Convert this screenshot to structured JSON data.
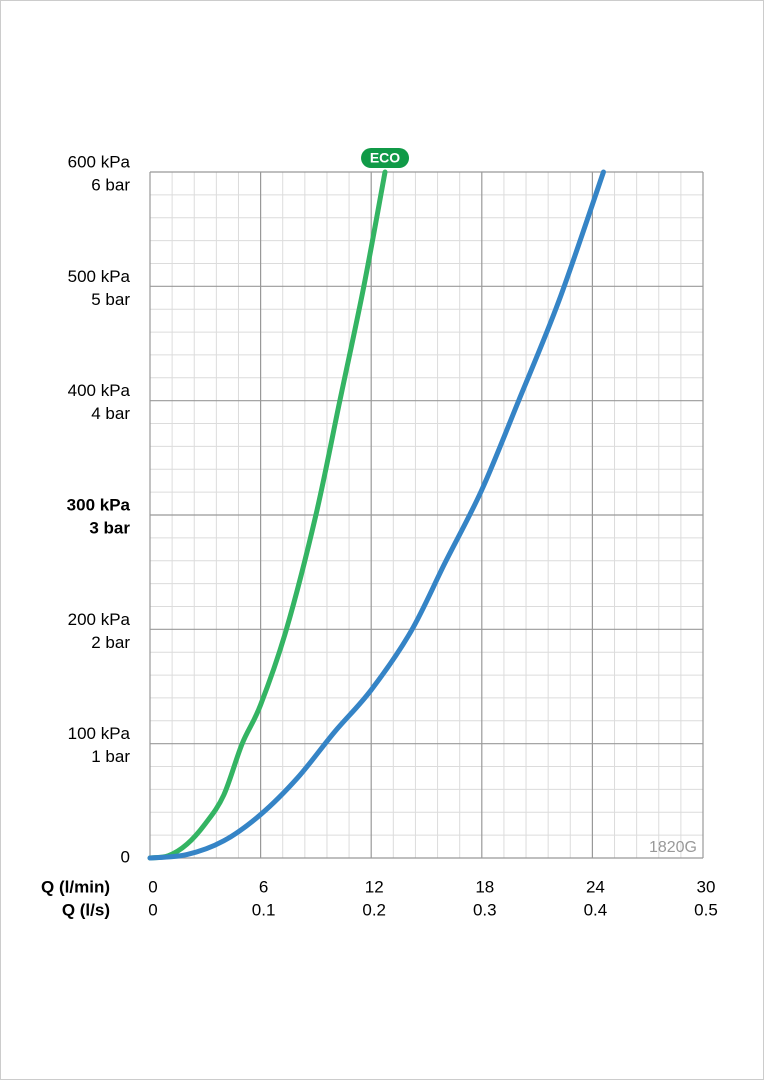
{
  "chart_data": {
    "type": "line",
    "x_label": "Q (l/min)",
    "x2_label": "Q (l/s)",
    "xlim": [
      0,
      30
    ],
    "xticks": [
      0,
      6,
      12,
      18,
      24,
      30
    ],
    "x2lim": [
      0,
      0.5
    ],
    "x2ticks": [
      0,
      0.1,
      0.2,
      0.3,
      0.4,
      0.5
    ],
    "ylim": [
      0,
      600
    ],
    "yticks": [
      {
        "value": 0,
        "label": "0"
      },
      {
        "value": 100,
        "label": "100 kPa"
      },
      {
        "value": 200,
        "label": "200 kPa"
      },
      {
        "value": 300,
        "label": "300 kPa"
      },
      {
        "value": 400,
        "label": "400 kPa"
      },
      {
        "value": 500,
        "label": "500 kPa"
      },
      {
        "value": 600,
        "label": "600 kPa"
      }
    ],
    "y2lim": [
      0,
      6
    ],
    "y2ticks": [
      {
        "value": 1,
        "label": "1 bar"
      },
      {
        "value": 2,
        "label": "2 bar"
      },
      {
        "value": 3,
        "label": "3 bar"
      },
      {
        "value": 4,
        "label": "4 bar"
      },
      {
        "value": 5,
        "label": "5 bar"
      },
      {
        "value": 6,
        "label": "6 bar"
      }
    ],
    "bold_ytick": 300,
    "grid": true,
    "minor_grid": 5,
    "series": [
      {
        "badge": "ECO",
        "color": "#34b463",
        "badge_color": "#109a47",
        "x": [
          0,
          1,
          2,
          3,
          4,
          5,
          6,
          7.4,
          9,
          10.3,
          11.6,
          12.75
        ],
        "values": [
          0,
          2,
          12,
          30,
          55,
          100,
          134,
          200,
          300,
          400,
          500,
          600
        ]
      },
      {
        "color": "#3584c6",
        "x": [
          0,
          2,
          4,
          6,
          8,
          10,
          12,
          14.15,
          16,
          18,
          20,
          22.2,
          24.6
        ],
        "values": [
          0,
          3,
          15,
          38,
          70,
          110,
          147,
          198,
          258,
          322,
          400,
          488,
          600
        ]
      }
    ],
    "watermark": "1820G"
  }
}
